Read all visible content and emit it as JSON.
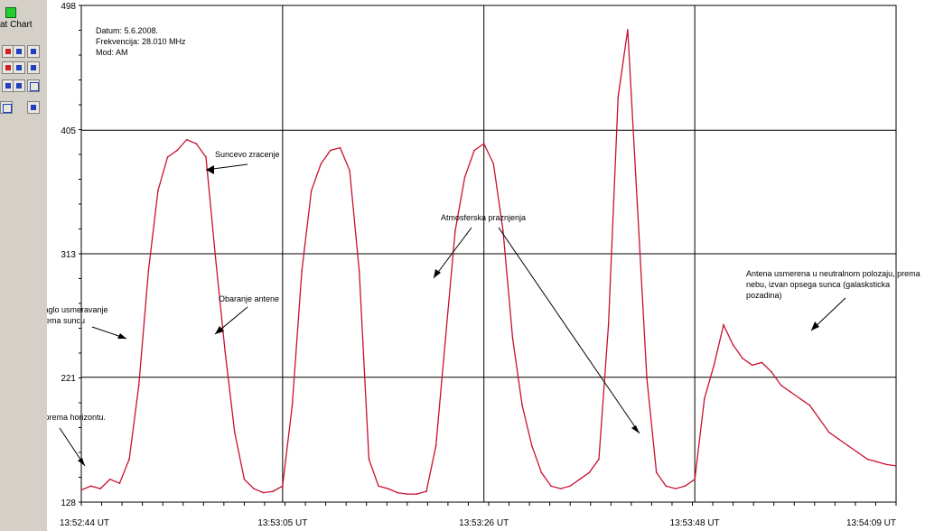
{
  "toolbar": {
    "title": "at Chart"
  },
  "chart_data": {
    "type": "line",
    "info_lines": [
      "Datum: 5.6.2008.",
      "Frekvencija: 28.010 MHz",
      "Mod: AM"
    ],
    "y_ticks": [
      128,
      221,
      313,
      405,
      498
    ],
    "x_ticks": [
      "13:52:44 UT",
      "13:53:05 UT",
      "13:53:26 UT",
      "13:53:48 UT",
      "13:54:09 UT"
    ],
    "x_tick_seconds": [
      0,
      21,
      42,
      64,
      85
    ],
    "ylim": [
      128,
      498
    ],
    "xlim_seconds": [
      0,
      85
    ],
    "grid": true,
    "series_color": "#c8102e",
    "series": [
      {
        "x": [
          0,
          1,
          2,
          3,
          4,
          5,
          6,
          7,
          8,
          9,
          10,
          11,
          12,
          13,
          14,
          15,
          16,
          17,
          18,
          19,
          20,
          21,
          22,
          23,
          24,
          25,
          26,
          27,
          28,
          29,
          30,
          31,
          32,
          33,
          34,
          35,
          36,
          37,
          38,
          39,
          40,
          41,
          42,
          43,
          44,
          45,
          46,
          47,
          48,
          49,
          50,
          51,
          52,
          53,
          54,
          55,
          56,
          57,
          58,
          59,
          60,
          61,
          62,
          63,
          64,
          65,
          66,
          67,
          68,
          69,
          70,
          71,
          72,
          73,
          74,
          75,
          76,
          77,
          78,
          79,
          80,
          81,
          82,
          83,
          84,
          85
        ],
        "y": [
          137,
          140,
          138,
          145,
          142,
          160,
          215,
          300,
          360,
          385,
          390,
          398,
          395,
          385,
          310,
          240,
          180,
          145,
          138,
          135,
          136,
          140,
          200,
          300,
          360,
          380,
          390,
          392,
          375,
          300,
          160,
          140,
          138,
          135,
          134,
          134,
          136,
          170,
          250,
          330,
          370,
          390,
          395,
          380,
          330,
          250,
          200,
          170,
          150,
          140,
          138,
          140,
          145,
          150,
          160,
          260,
          430,
          480,
          350,
          220,
          150,
          140,
          138,
          140,
          145,
          205,
          230,
          260,
          245,
          235,
          230,
          232,
          225,
          215,
          210,
          205,
          200,
          190,
          180,
          175,
          170,
          165,
          160,
          158,
          156,
          155
        ]
      }
    ],
    "annotations": [
      {
        "text": "Suncevo zracenje"
      },
      {
        "text": "Obaranje antene"
      },
      {
        "text": "Naglo usmeravanje",
        "text2": "prema suncu"
      },
      {
        "text": "usmerenost prema horizontu."
      },
      {
        "text": "Atmosferska praznjenja"
      },
      {
        "text": "Antena usmerena u neutralnom polozaju, prema",
        "text2": "nebu, izvan opsega sunca (galasksticka",
        "text3": "pozadina)"
      }
    ]
  }
}
